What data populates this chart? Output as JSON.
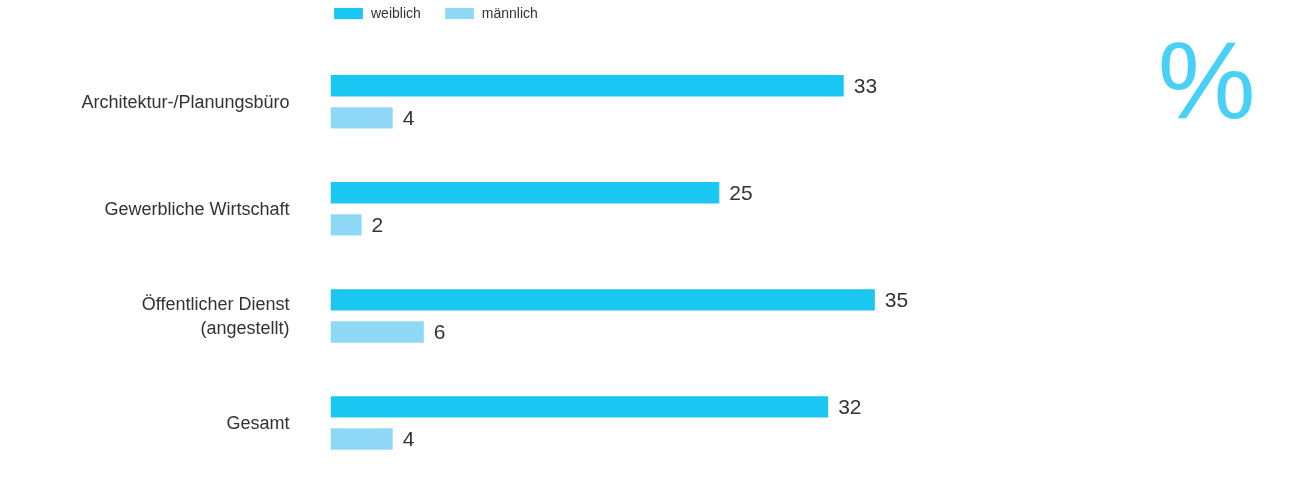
{
  "chart_data": {
    "type": "bar",
    "orientation": "horizontal",
    "categories": [
      "Architektur-/Planungsbüro",
      "Gewerbliche Wirtschaft",
      "Öffentlicher Dienst\n(angestellt)",
      "Gesamt"
    ],
    "series": [
      {
        "name": "weiblich",
        "color": "#1ac6f2",
        "values": [
          33,
          25,
          35,
          32
        ]
      },
      {
        "name": "männlich",
        "color": "#8fd9f6",
        "values": [
          4,
          2,
          6,
          4
        ]
      }
    ],
    "data_labels": true,
    "legend": "top left",
    "grid": false,
    "annotations": [
      "%"
    ]
  }
}
